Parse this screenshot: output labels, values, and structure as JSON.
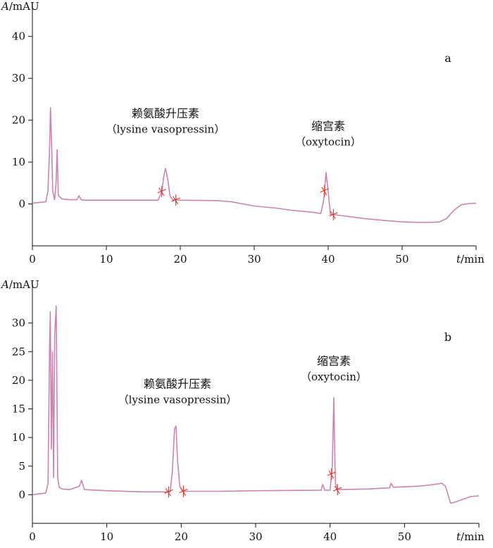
{
  "chart_data": [
    {
      "type": "line",
      "panel_label": "a",
      "ylabel": "A/mAU",
      "xlabel": "t/min",
      "xlim": [
        0,
        60
      ],
      "ylim": [
        -10,
        45
      ],
      "x_ticks": [
        0,
        10,
        20,
        30,
        40,
        50
      ],
      "y_ticks": [
        0,
        10,
        20,
        30,
        40
      ],
      "grid": false,
      "line_color": "#c985b1",
      "marker_color": "#e0312a",
      "series": [
        {
          "x": [
            0,
            1.8,
            2.1,
            2.3,
            2.45,
            2.6,
            2.75,
            3.0,
            3.2,
            3.35,
            3.5,
            4,
            5,
            6.0,
            6.3,
            6.6,
            7,
            10,
            15,
            17.0,
            17.5,
            17.8,
            18.0,
            18.3,
            18.6,
            19.0,
            20,
            25,
            27,
            30,
            33,
            35,
            38,
            39.0,
            39.4,
            39.7,
            40.0,
            40.3,
            41,
            45,
            48,
            50,
            52,
            54,
            55,
            56,
            57,
            58,
            59,
            60
          ],
          "y": [
            0.2,
            0.5,
            3,
            12,
            23,
            14,
            3,
            1,
            5,
            13,
            2,
            1.2,
            1,
            1,
            2,
            1,
            0.9,
            0.9,
            0.9,
            0.9,
            3,
            7,
            8.5,
            6,
            2,
            1,
            0.9,
            0.8,
            0.5,
            -0.5,
            -1,
            -1.5,
            -2,
            -2.3,
            1,
            7.5,
            3,
            -2.5,
            -2.6,
            -3.5,
            -4,
            -4.3,
            -4.4,
            -4.4,
            -4.3,
            -3.5,
            -1.5,
            -0.2,
            0.1,
            0.2
          ]
        }
      ],
      "annotations": [
        {
          "text": "赖氨酸升压素",
          "sub": "（lysine vasopressin）",
          "x": 18,
          "y": 17
        },
        {
          "text": "缩宫素",
          "sub": "（oxytocin）",
          "x": 40,
          "y": 14
        }
      ],
      "integration_markers_x": [
        17.5,
        19.4,
        39.5,
        40.7
      ]
    },
    {
      "type": "line",
      "panel_label": "b",
      "ylabel": "A/mAU",
      "xlabel": "t/min",
      "xlim": [
        0,
        60
      ],
      "ylim": [
        -5,
        35
      ],
      "x_ticks": [
        0,
        10,
        20,
        30,
        40,
        50
      ],
      "y_ticks": [
        0,
        5,
        10,
        15,
        20,
        25,
        30
      ],
      "grid": false,
      "line_color": "#c985b1",
      "marker_color": "#e0312a",
      "series": [
        {
          "x": [
            0,
            1.8,
            2.1,
            2.3,
            2.4,
            2.55,
            2.7,
            2.85,
            3.0,
            3.2,
            3.4,
            3.6,
            4,
            5,
            6.3,
            6.6,
            7,
            10,
            15,
            18.5,
            18.8,
            19.1,
            19.3,
            19.5,
            19.8,
            20.2,
            25,
            30,
            38.8,
            39.0,
            39.3,
            40.0,
            40.3,
            40.5,
            40.7,
            41.0,
            45,
            48,
            48.2,
            48.5,
            52,
            54,
            55,
            55.5,
            56.2,
            57,
            58,
            59,
            60
          ],
          "y": [
            0,
            0.3,
            2,
            25,
            32,
            8,
            25,
            3,
            28,
            33,
            3,
            1.3,
            1,
            0.9,
            1.5,
            2.5,
            0.9,
            0.7,
            0.5,
            0.5,
            4,
            11.5,
            12,
            6,
            1.5,
            0.6,
            0.6,
            0.7,
            0.8,
            1.8,
            0.8,
            0.8,
            5,
            17,
            2,
            0.9,
            1,
            1.2,
            2,
            1.3,
            1.5,
            1.8,
            2,
            1.5,
            -1.5,
            -1.2,
            -0.7,
            -0.3,
            -0.2
          ]
        }
      ],
      "annotations": [
        {
          "text": "赖氨酸升压素",
          "sub": "（lysine vasopressin）",
          "x": 19.5,
          "y": 16
        },
        {
          "text": "缩宫素",
          "sub": "（oxytocin）",
          "x": 40.5,
          "y": 20
        }
      ],
      "integration_markers_x": [
        18.3,
        20.3,
        40.2,
        41.0
      ]
    }
  ]
}
